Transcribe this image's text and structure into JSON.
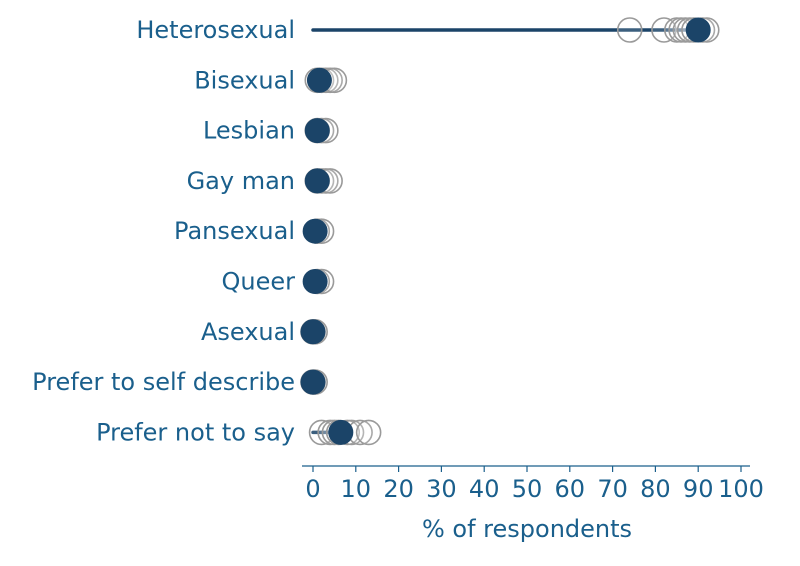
{
  "colors": {
    "label": "#1a5f8c",
    "highlight": "#1b4468",
    "comparison_outline": "#9a9a9a"
  },
  "chart_data": {
    "type": "scatter",
    "title": "",
    "xlabel": "% of respondents",
    "ylabel": "",
    "xlim": [
      0,
      100
    ],
    "x_ticks": [
      0,
      10,
      20,
      30,
      40,
      50,
      60,
      70,
      80,
      90,
      100
    ],
    "grid": false,
    "categories": [
      "Heterosexual",
      "Bisexual",
      "Lesbian",
      "Gay man",
      "Pansexual",
      "Queer",
      "Asexual",
      "Prefer to self describe",
      "Prefer not to say"
    ],
    "highlighted_values": [
      90,
      1.5,
      1,
      1,
      0.5,
      0.5,
      0,
      0,
      6.5
    ],
    "range_lines": [
      [
        0,
        90
      ],
      null,
      null,
      null,
      null,
      null,
      null,
      null,
      [
        0,
        6.5
      ]
    ],
    "comparison_values": [
      [
        74,
        82,
        85,
        86,
        87,
        88,
        89,
        91,
        92
      ],
      [
        1,
        2,
        3,
        4,
        5
      ],
      [
        1,
        2,
        3
      ],
      [
        1,
        2,
        3,
        4
      ],
      [
        1,
        2
      ],
      [
        1,
        2
      ],
      [
        0,
        0.5
      ],
      [
        0,
        0.5
      ],
      [
        2,
        4,
        5,
        6,
        8,
        9,
        11,
        13
      ]
    ]
  }
}
